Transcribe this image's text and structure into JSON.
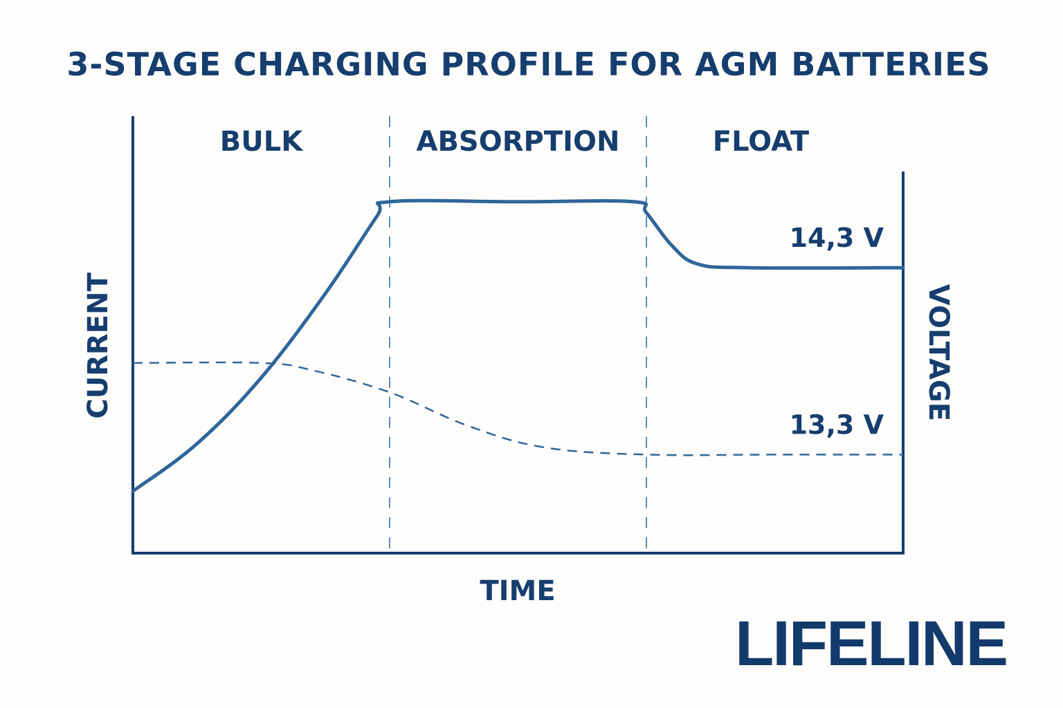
{
  "title": "3-STAGE CHARGING PROFILE FOR AGM BATTERIES",
  "brand": {
    "logo_text": "LIFELINE",
    "color": "#123a6b"
  },
  "colors": {
    "text": "#163e6e",
    "axis": "#163e6e",
    "voltage_line": "#2f6699",
    "current_line": "#2f6699",
    "divider": "#5a8fbd",
    "background": "#fdfdfc"
  },
  "chart_data": {
    "type": "line",
    "title": "3-STAGE CHARGING PROFILE FOR AGM BATTERIES",
    "xlabel": "TIME",
    "ylabel_left": "CURRENT",
    "ylabel_right": "VOLTAGE",
    "stages": [
      "BULK",
      "ABSORPTION",
      "FLOAT"
    ],
    "stage_boundaries": [
      1,
      2
    ],
    "xlim": [
      0,
      3
    ],
    "ylim": [
      0,
      10
    ],
    "series": [
      {
        "name": "Voltage",
        "style": "solid",
        "x": [
          0,
          0.25,
          0.5,
          0.75,
          0.95,
          1.0,
          1.5,
          1.95,
          2.0,
          2.1,
          2.2,
          2.4,
          3.0
        ],
        "y": [
          1.5,
          2.8,
          4.6,
          6.9,
          9.0,
          9.4,
          9.4,
          9.4,
          9.1,
          8.2,
          7.7,
          7.6,
          7.6
        ]
      },
      {
        "name": "Current",
        "style": "dashed",
        "x": [
          0,
          0.5,
          0.7,
          1.0,
          1.3,
          1.6,
          2.0,
          2.5,
          3.0
        ],
        "y": [
          5.0,
          5.0,
          4.8,
          4.2,
          3.3,
          2.7,
          2.5,
          2.5,
          2.5
        ]
      }
    ],
    "annotations": [
      {
        "text": "14,3 V",
        "series": "Voltage"
      },
      {
        "text": "13,3 V",
        "series": "Current"
      }
    ]
  }
}
